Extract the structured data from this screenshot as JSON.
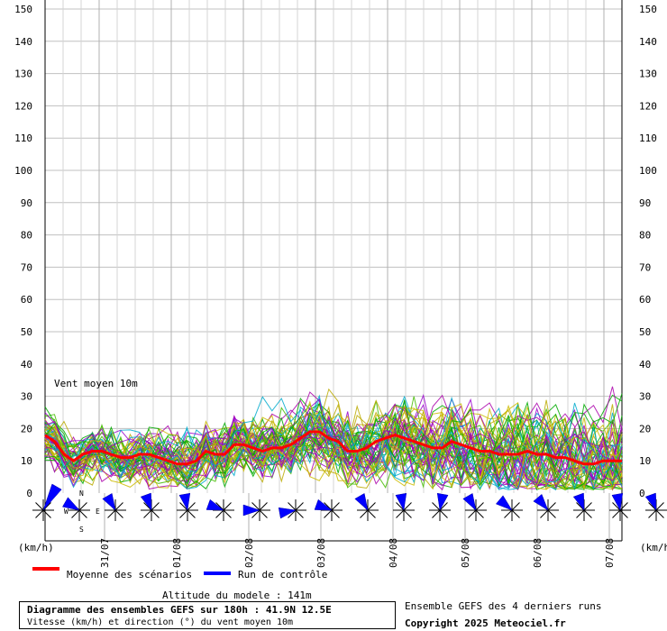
{
  "chart_data": {
    "type": "line",
    "ylabel": "(km/h)",
    "ylim": [
      0,
      150
    ],
    "y_ticks": [
      0,
      10,
      20,
      30,
      40,
      50,
      60,
      70,
      80,
      90,
      100,
      110,
      120,
      130,
      140,
      150
    ],
    "grid": true,
    "x_date_labels": [
      "31/07",
      "01/08",
      "02/08",
      "03/08",
      "04/08",
      "05/08",
      "06/08",
      "07/08"
    ],
    "annotation": "Vent moyen 10m",
    "series": [
      {
        "name": "Moyenne des scénarios",
        "color": "#ff0000",
        "values": [
          18,
          16,
          12,
          10,
          12,
          13,
          13,
          12,
          11,
          11,
          12,
          12,
          11,
          10,
          9,
          9,
          10,
          13,
          12,
          12,
          15,
          15,
          14,
          13,
          14,
          14,
          15,
          17,
          19,
          19,
          17,
          16,
          13,
          13,
          14,
          16,
          17,
          18,
          17,
          16,
          15,
          14,
          14,
          16,
          15,
          14,
          13,
          13,
          12,
          12,
          12,
          13,
          12,
          12,
          11,
          11,
          10,
          9,
          9,
          10,
          10,
          10
        ]
      },
      {
        "name": "Run de contrôle",
        "color": "#0000ff",
        "values": []
      }
    ],
    "wind_direction_glyphs": 18
  },
  "axis_units_left": "(km/h)",
  "axis_units_right": "(km/h)",
  "compass": {
    "n": "N",
    "s": "S",
    "w": "W",
    "e": "E"
  },
  "legend": {
    "mean_label": "Moyenne des scénarios",
    "control_label": "Run de contrôle"
  },
  "footer": {
    "altitude": "Altitude du modele : 141m",
    "title_line": "Diagramme des ensembles GEFS sur 180h : 41.9N 12.5E",
    "subtitle_line": "Vitesse (km/h) et direction (°) du vent moyen 10m",
    "ensemble_note": "Ensemble GEFS des 4 derniers runs",
    "copyright": "Copyright 2025 Meteociel.fr"
  },
  "colors": {
    "mean": "#ff0000",
    "control": "#0000ff",
    "ensemble": [
      "#00aa00",
      "#aa00aa",
      "#bbaa00",
      "#00aacc",
      "#44bb00",
      "#9900cc",
      "#ccbb00"
    ]
  }
}
